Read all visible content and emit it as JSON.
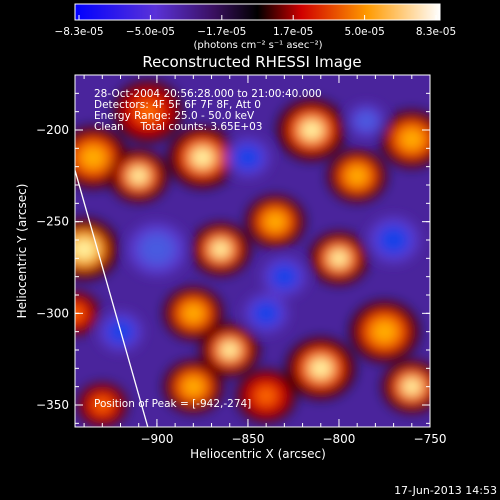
{
  "chart_data": {
    "type": "heatmap",
    "title": "Reconstructed RHESSI Image",
    "xlabel": "Heliocentric X (arcsec)",
    "ylabel": "Heliocentric Y (arcsec)",
    "xlim": [
      -945,
      -750
    ],
    "ylim": [
      -362,
      -170
    ],
    "x_ticks": [
      -900,
      -850,
      -800,
      -750
    ],
    "y_ticks": [
      -350,
      -300,
      -250,
      -200
    ],
    "colorbar": {
      "unit_label": "(photons cm⁻² s⁻¹ asec⁻²)",
      "ticks": [
        "-8.3e-05",
        "-5.0e-05",
        "-1.7e-05",
        "1.7e-05",
        "5.0e-05",
        "8.3e-05"
      ],
      "range": [
        -8.3e-05,
        8.3e-05
      ],
      "colors": [
        "#0000ff",
        "#6a2ad0",
        "#000000",
        "#ff0000",
        "#ffaa00",
        "#ffffff"
      ]
    },
    "annotations": [
      "28-Oct-2004 20:56:28.000 to 21:00:40.000",
      "Detectors: 4F 5F 6F 7F 8F, Att 0",
      "Energy Range: 25.0 - 50.0 keV",
      "Clean     Total counts: 3.65E+03"
    ],
    "peak_label": "Position of Peak = [-942,-274]",
    "limb_line": [
      [
        -945,
        -222
      ],
      [
        -905,
        -362
      ]
    ],
    "blobs": [
      {
        "x": -935,
        "y": -215,
        "v": 0.8,
        "r": 14
      },
      {
        "x": -905,
        "y": -190,
        "v": 0.6,
        "r": 14
      },
      {
        "x": -910,
        "y": -225,
        "v": 0.9,
        "r": 12
      },
      {
        "x": -875,
        "y": -215,
        "v": 0.9,
        "r": 14
      },
      {
        "x": -940,
        "y": -265,
        "v": 1.0,
        "r": 14
      },
      {
        "x": -900,
        "y": -265,
        "v": -0.6,
        "r": 16
      },
      {
        "x": -865,
        "y": -265,
        "v": 0.9,
        "r": 12
      },
      {
        "x": -815,
        "y": -200,
        "v": 0.9,
        "r": 14
      },
      {
        "x": -790,
        "y": -225,
        "v": 0.8,
        "r": 12
      },
      {
        "x": -835,
        "y": -250,
        "v": 0.7,
        "r": 12
      },
      {
        "x": -800,
        "y": -270,
        "v": 0.9,
        "r": 12
      },
      {
        "x": -760,
        "y": -205,
        "v": 0.7,
        "r": 13
      },
      {
        "x": -770,
        "y": -260,
        "v": -0.8,
        "r": 14
      },
      {
        "x": -850,
        "y": -215,
        "v": -0.7,
        "r": 12
      },
      {
        "x": -785,
        "y": -195,
        "v": -0.6,
        "r": 10
      },
      {
        "x": -920,
        "y": -310,
        "v": -0.9,
        "r": 12
      },
      {
        "x": -880,
        "y": -300,
        "v": 0.8,
        "r": 12
      },
      {
        "x": -860,
        "y": -320,
        "v": 0.9,
        "r": 12
      },
      {
        "x": -840,
        "y": -300,
        "v": -0.7,
        "r": 12
      },
      {
        "x": -810,
        "y": -330,
        "v": 0.9,
        "r": 14
      },
      {
        "x": -775,
        "y": -310,
        "v": 0.8,
        "r": 14
      },
      {
        "x": -760,
        "y": -340,
        "v": 0.9,
        "r": 12
      },
      {
        "x": -880,
        "y": -340,
        "v": 0.8,
        "r": 12
      },
      {
        "x": -840,
        "y": -345,
        "v": 0.6,
        "r": 12
      },
      {
        "x": -930,
        "y": -350,
        "v": 0.5,
        "r": 10
      },
      {
        "x": -830,
        "y": -280,
        "v": -0.8,
        "r": 12
      },
      {
        "x": -945,
        "y": -300,
        "v": 0.6,
        "r": 10
      }
    ]
  },
  "footer_date": "17-Jun-2013 14:53"
}
